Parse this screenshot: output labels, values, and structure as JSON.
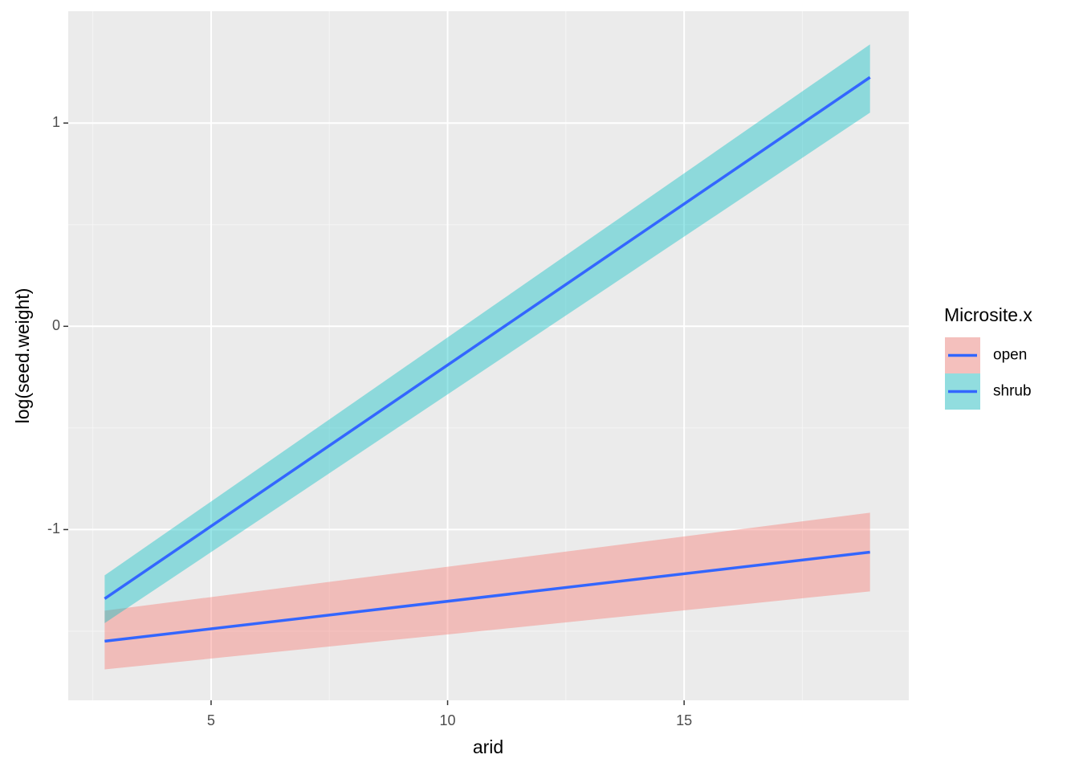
{
  "chart_data": {
    "type": "line",
    "x_label": "arid",
    "y_label": "log(seed.weight)",
    "legend_title": "Microsite.x",
    "legend": "right",
    "xlim": [
      1.98,
      19.75
    ],
    "ylim": [
      -1.84,
      1.55
    ],
    "xticks": [
      5,
      10,
      15
    ],
    "yticks": [
      -1,
      0,
      1
    ],
    "xminor": [
      2.5,
      7.5,
      12.5,
      17.5
    ],
    "yminor": [
      -1.5,
      -0.5,
      0.5
    ],
    "grid": true,
    "line_color": "#3366FF",
    "series": [
      {
        "name": "open",
        "color": "#F8766D",
        "x": [
          2.75,
          18.93
        ],
        "values": [
          -1.549,
          -1.111
        ],
        "lower": [
          -1.688,
          -1.304
        ],
        "upper": [
          -1.399,
          -0.917
        ]
      },
      {
        "name": "shrub",
        "color": "#00BFC4",
        "x": [
          2.75,
          18.93
        ],
        "values": [
          -1.34,
          1.225
        ],
        "lower": [
          -1.46,
          1.051
        ],
        "upper": [
          -1.225,
          1.387
        ]
      }
    ]
  }
}
